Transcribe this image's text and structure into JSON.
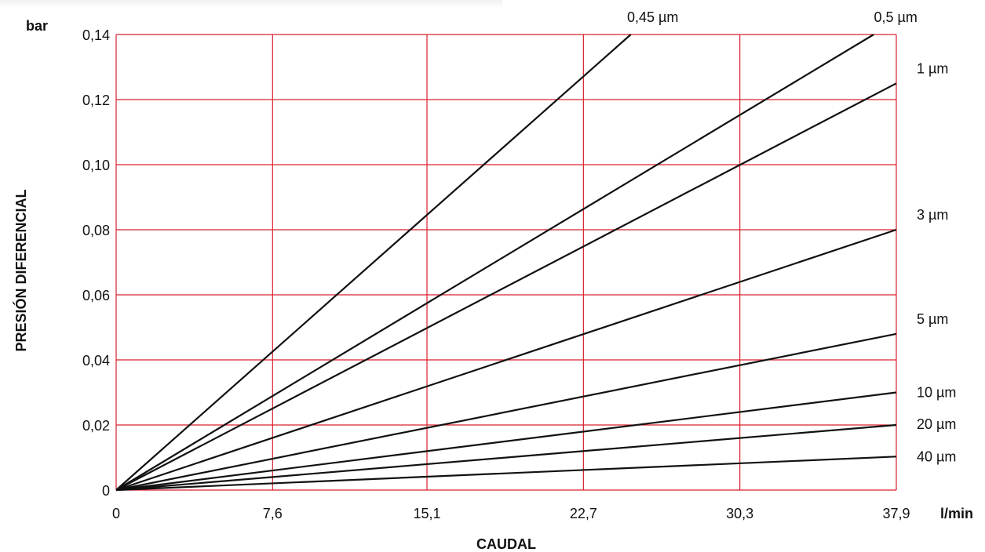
{
  "chart_data": {
    "type": "line",
    "title": "",
    "xlabel": "CAUDAL",
    "ylabel": "PRESIÓN DIFERENCIAL",
    "x_unit": "l/min",
    "y_unit": "bar",
    "xlim": [
      0,
      37.9
    ],
    "ylim": [
      0,
      0.14
    ],
    "x_ticks": [
      0,
      7.6,
      15.1,
      22.7,
      30.3,
      37.9
    ],
    "x_tick_labels": [
      "0",
      "7,6",
      "15,1",
      "22,7",
      "30,3",
      "37,9"
    ],
    "y_ticks": [
      0,
      0.02,
      0.04,
      0.06,
      0.08,
      0.1,
      0.12,
      0.14
    ],
    "y_tick_labels": [
      "0",
      "0,02",
      "0,04",
      "0,06",
      "0,08",
      "0,10",
      "0,12",
      "0,14"
    ],
    "grid": true,
    "grid_color": "#d9202f",
    "line_color": "#111111",
    "series": [
      {
        "name": "0,45 µm",
        "x": [
          0,
          25.0
        ],
        "y": [
          0,
          0.14
        ]
      },
      {
        "name": "0,5 µm",
        "x": [
          0,
          36.8
        ],
        "y": [
          0,
          0.14
        ]
      },
      {
        "name": "1 µm",
        "x": [
          0,
          37.9
        ],
        "y": [
          0,
          0.125
        ]
      },
      {
        "name": "3 µm",
        "x": [
          0,
          37.9
        ],
        "y": [
          0,
          0.08
        ]
      },
      {
        "name": "5 µm",
        "x": [
          0,
          37.9
        ],
        "y": [
          0,
          0.048
        ]
      },
      {
        "name": "10 µm",
        "x": [
          0,
          37.9
        ],
        "y": [
          0,
          0.03
        ]
      },
      {
        "name": "20 µm",
        "x": [
          0,
          37.9
        ],
        "y": [
          0,
          0.02
        ]
      },
      {
        "name": "40 µm",
        "x": [
          0,
          37.9
        ],
        "y": [
          0,
          0.0103
        ]
      }
    ]
  }
}
